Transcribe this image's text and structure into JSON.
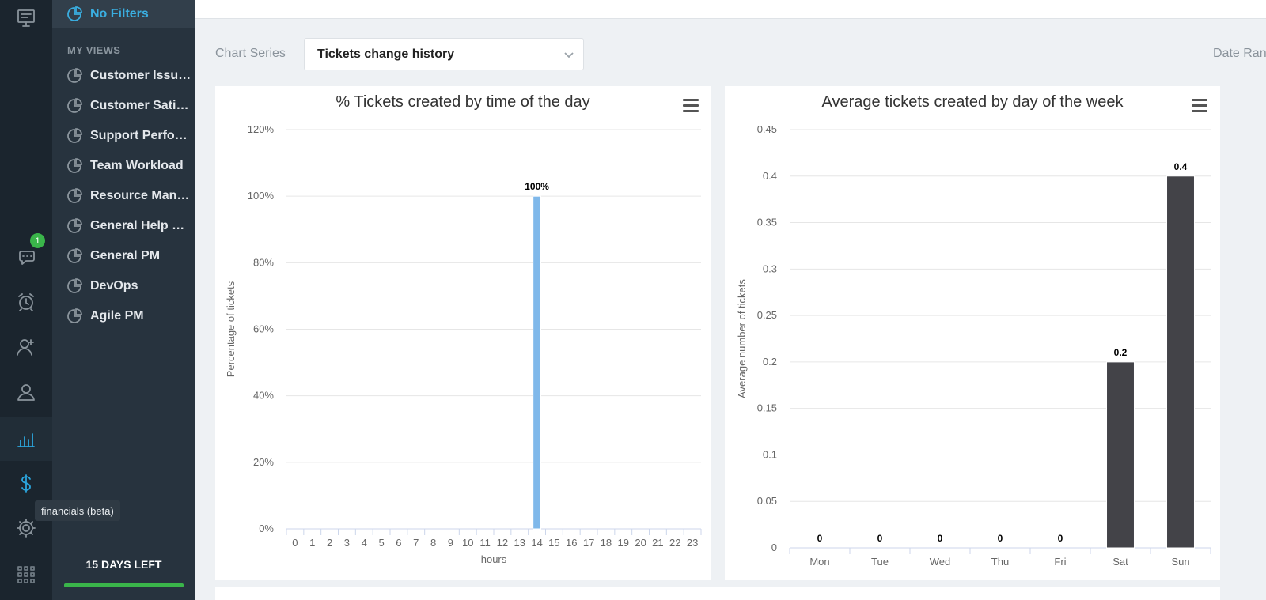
{
  "sidebar": {
    "top_item": "No Filters",
    "heading": "MY VIEWS",
    "items": [
      "Customer Issues",
      "Customer Satis…",
      "Support Perfor…",
      "Team Workload",
      "Resource Man…",
      "General Help D…",
      "General PM",
      "DevOps",
      "Agile PM"
    ],
    "days_left": "15 DAYS LEFT"
  },
  "rail": {
    "badge_count": "1",
    "tooltip": "financials (beta)",
    "icons": [
      "presentation-icon",
      "chat-icon",
      "alarm-icon",
      "user-add-icon",
      "users-icon",
      "bar-chart-icon",
      "dollar-icon",
      "gear-icon",
      "apps-grid-icon"
    ]
  },
  "toolbar": {
    "series_label": "Chart Series",
    "series_value": "Tickets change history",
    "date_label": "Date Ran"
  },
  "colors": {
    "accent": "#2ba6de",
    "bar_hours": "#7fb8ea",
    "bar_week": "#434348",
    "badge": "#3ab54a"
  },
  "chart_data": [
    {
      "type": "bar",
      "title": "% Tickets created by time of the day",
      "xlabel": "hours",
      "ylabel": "Percentage of tickets",
      "categories": [
        "0",
        "1",
        "2",
        "3",
        "4",
        "5",
        "6",
        "7",
        "8",
        "9",
        "10",
        "11",
        "12",
        "13",
        "14",
        "15",
        "16",
        "17",
        "18",
        "19",
        "20",
        "21",
        "22",
        "23"
      ],
      "values": [
        0,
        0,
        0,
        0,
        0,
        0,
        0,
        0,
        0,
        0,
        0,
        0,
        0,
        0,
        100,
        0,
        0,
        0,
        0,
        0,
        0,
        0,
        0,
        0
      ],
      "data_labels": {
        "14": "100%"
      },
      "ylim": [
        0,
        120
      ],
      "yticks": [
        "0%",
        "20%",
        "40%",
        "60%",
        "80%",
        "100%",
        "120%"
      ],
      "grid": true
    },
    {
      "type": "bar",
      "title": "Average tickets created by day of the week",
      "xlabel": "",
      "ylabel": "Average number of tickets",
      "categories": [
        "Mon",
        "Tue",
        "Wed",
        "Thu",
        "Fri",
        "Sat",
        "Sun"
      ],
      "values": [
        0,
        0,
        0,
        0,
        0,
        0.2,
        0.4
      ],
      "data_labels": [
        "0",
        "0",
        "0",
        "0",
        "0",
        "0.2",
        "0.4"
      ],
      "ylim": [
        0,
        0.45
      ],
      "yticks": [
        "0",
        "0.05",
        "0.1",
        "0.15",
        "0.2",
        "0.25",
        "0.3",
        "0.35",
        "0.4",
        "0.45"
      ],
      "grid": true
    }
  ]
}
